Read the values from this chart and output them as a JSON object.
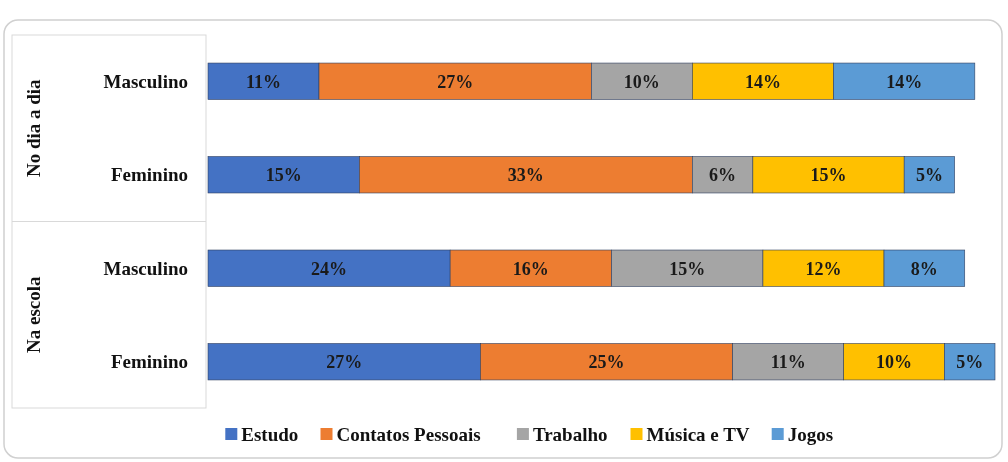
{
  "chart_data": {
    "type": "bar",
    "orientation": "horizontal",
    "stacked": true,
    "categories": [
      "Masculino",
      "Feminino",
      "Masculino",
      "Feminino"
    ],
    "series": [
      {
        "name": "Estudo",
        "color": "#4472c4",
        "values": [
          11,
          15,
          24,
          27
        ],
        "value_labels": [
          "11%",
          "15%",
          "24%",
          "27%"
        ]
      },
      {
        "name": "Contatos Pessoais",
        "color": "#ed7d31",
        "values": [
          27,
          33,
          16,
          25
        ],
        "value_labels": [
          "27%",
          "33%",
          "16%",
          "25%"
        ]
      },
      {
        "name": "Trabalho",
        "color": "#a5a5a5",
        "values": [
          10,
          6,
          15,
          11
        ],
        "value_labels": [
          "10%",
          "6%",
          "15%",
          "11%"
        ]
      },
      {
        "name": "Música e TV",
        "color": "#ffc000",
        "values": [
          14,
          15,
          12,
          10
        ],
        "value_labels": [
          "14%",
          "15%",
          "12%",
          "10%"
        ]
      },
      {
        "name": "Jogos",
        "color": "#5b9bd5",
        "values": [
          14,
          5,
          8,
          5
        ],
        "value_labels": [
          "14%",
          "5%",
          "8%",
          "5%"
        ]
      }
    ],
    "tick_labels": "y",
    "legend": "bottom",
    "annotations": [
      "No dia a dia",
      "Na escola"
    ]
  }
}
